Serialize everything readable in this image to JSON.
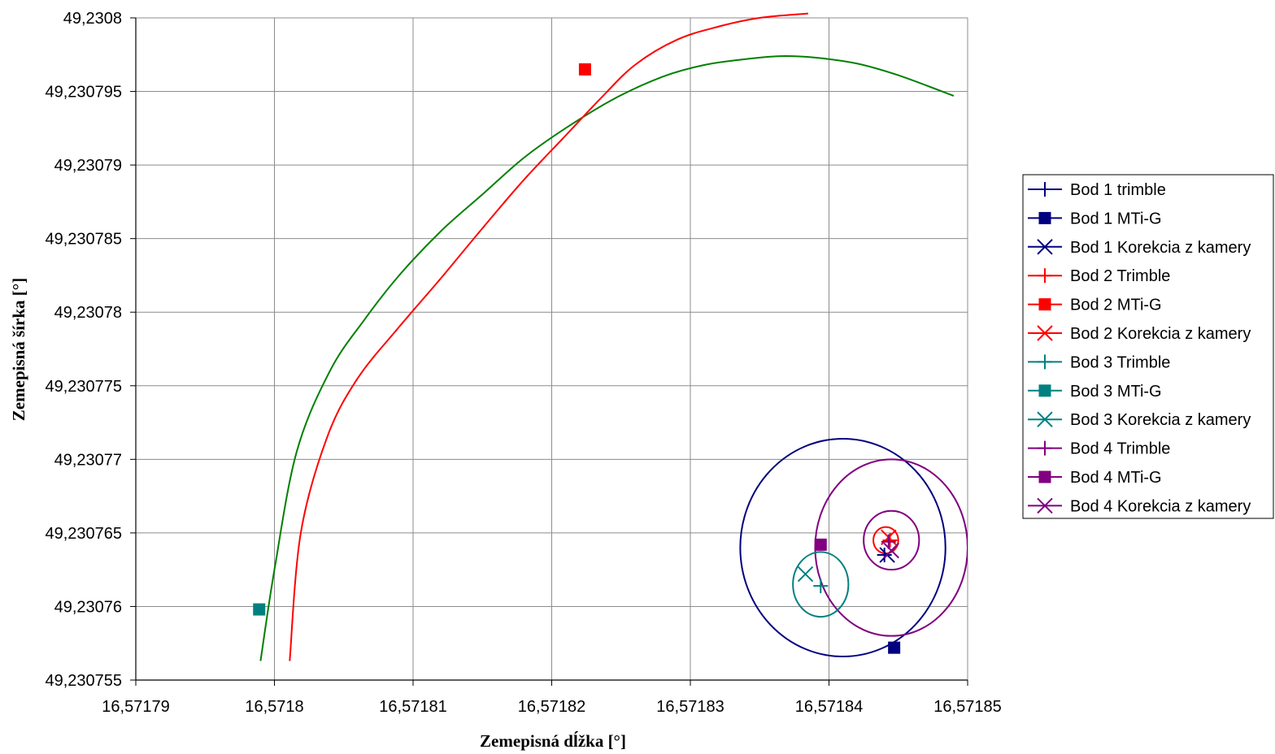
{
  "chart_data": {
    "type": "scatter",
    "title": "",
    "xlabel": "Zemepisná dĺžka [°]",
    "ylabel": "Zemepisná šírka [°]",
    "xlim": [
      16.57179,
      16.57185
    ],
    "ylim": [
      49.230755,
      49.2308
    ],
    "x_ticks": [
      16.57179,
      16.5718,
      16.57181,
      16.57182,
      16.57183,
      16.57184,
      16.57185
    ],
    "x_tick_labels": [
      "16,57179",
      "16,5718",
      "16,57181",
      "16,57182",
      "16,57183",
      "16,57184",
      "16,57185"
    ],
    "y_ticks": [
      49.2308,
      49.230795,
      49.23079,
      49.230785,
      49.23078,
      49.230775,
      49.23077,
      49.230765,
      49.23076,
      49.230755
    ],
    "y_tick_labels": [
      "49,2308",
      "49,230795",
      "49,23079",
      "49,230785",
      "49,23078",
      "49,230775",
      "49,23077",
      "49,230765",
      "49,23076",
      "49,230755"
    ],
    "grid": true,
    "legend_position": "right",
    "series": [
      {
        "name": "Bod 1 trimble",
        "color": "#000080",
        "marker": "plus",
        "x": [
          16.571844
        ],
        "y": [
          49.2307635
        ]
      },
      {
        "name": "Bod 1 MTi-G",
        "color": "#000080",
        "marker": "square",
        "x": [
          16.5718447
        ],
        "y": [
          49.2307572
        ]
      },
      {
        "name": "Bod 1 Korekcia z kamery",
        "color": "#000080",
        "marker": "x",
        "x": [
          16.5718442
        ],
        "y": [
          49.2307635
        ]
      },
      {
        "name": "Bod 2 Trimble",
        "color": "#ff0000",
        "marker": "plus",
        "x": [
          16.5718444
        ],
        "y": [
          49.2307645
        ]
      },
      {
        "name": "Bod 2 MTi-G",
        "color": "#ff0000",
        "marker": "square",
        "x": [
          16.5718224
        ],
        "y": [
          49.2307965
        ]
      },
      {
        "name": "Bod 2 Korekcia z kamery",
        "color": "#ff0000",
        "marker": "x",
        "x": [
          16.5718443
        ],
        "y": [
          49.2307647
        ]
      },
      {
        "name": "Bod 3 Trimble",
        "color": "#008080",
        "marker": "plus",
        "x": [
          16.5718394
        ],
        "y": [
          49.2307614
        ]
      },
      {
        "name": "Bod 3 MTi-G",
        "color": "#008080",
        "marker": "square",
        "x": [
          16.5717989
        ],
        "y": [
          49.2307598
        ]
      },
      {
        "name": "Bod 3 Korekcia z kamery",
        "color": "#008080",
        "marker": "x",
        "x": [
          16.5718383
        ],
        "y": [
          49.2307622
        ]
      },
      {
        "name": "Bod 4 Trimble",
        "color": "#800080",
        "marker": "plus",
        "x": [
          16.5718443
        ],
        "y": [
          49.2307644
        ]
      },
      {
        "name": "Bod 4 MTi-G",
        "color": "#800080",
        "marker": "square",
        "x": [
          16.5718394
        ],
        "y": [
          49.2307642
        ]
      },
      {
        "name": "Bod 4 Korekcia z kamery",
        "color": "#800080",
        "marker": "x",
        "x": [
          16.5718445
        ],
        "y": [
          49.2307638
        ]
      }
    ],
    "circles": [
      {
        "color": "#000080",
        "cx": 16.571841,
        "cy": 49.230764,
        "rx": 7.4e-06,
        "ry": 7.4e-06
      },
      {
        "color": "#800080",
        "cx": 16.5718445,
        "cy": 49.230764,
        "rx": 5.5e-06,
        "ry": 6e-06
      },
      {
        "color": "#800080",
        "cx": 16.5718445,
        "cy": 49.2307645,
        "rx": 2e-06,
        "ry": 2e-06
      },
      {
        "color": "#ff0000",
        "cx": 16.5718441,
        "cy": 49.2307645,
        "rx": 9e-07,
        "ry": 9e-07
      },
      {
        "color": "#008080",
        "cx": 16.5718394,
        "cy": 49.2307615,
        "rx": 2e-06,
        "ry": 2.2e-06
      }
    ],
    "curves": [
      {
        "color": "#008000",
        "x": [
          16.571799,
          16.5718,
          16.5718016,
          16.571804,
          16.5718065,
          16.571809,
          16.571812,
          16.571815,
          16.571818,
          16.571821,
          16.5718245,
          16.571828,
          16.571831,
          16.571834,
          16.5718365,
          16.571839,
          16.571842,
          16.571845,
          16.571849
        ],
        "y": [
          49.2307563,
          49.2307625,
          49.2307705,
          49.230776,
          49.2307795,
          49.2307825,
          49.2307855,
          49.230788,
          49.2307905,
          49.2307925,
          49.2307945,
          49.230796,
          49.2307968,
          49.2307972,
          49.2307974,
          49.2307973,
          49.2307969,
          49.2307961,
          49.2307947
        ]
      },
      {
        "color": "#ff0000",
        "x": [
          16.5718011,
          16.5718019,
          16.5718038,
          16.571806,
          16.571809,
          16.571812,
          16.571815,
          16.571818,
          16.571821,
          16.5718235,
          16.571826,
          16.571829,
          16.571832,
          16.571835,
          16.5718385
        ],
        "y": [
          49.2307563,
          49.230765,
          49.2307715,
          49.2307755,
          49.230779,
          49.2307823,
          49.2307857,
          49.230789,
          49.230792,
          49.2307945,
          49.2307968,
          49.2307985,
          49.2307994,
          49.2308,
          49.2308003
        ]
      }
    ]
  }
}
